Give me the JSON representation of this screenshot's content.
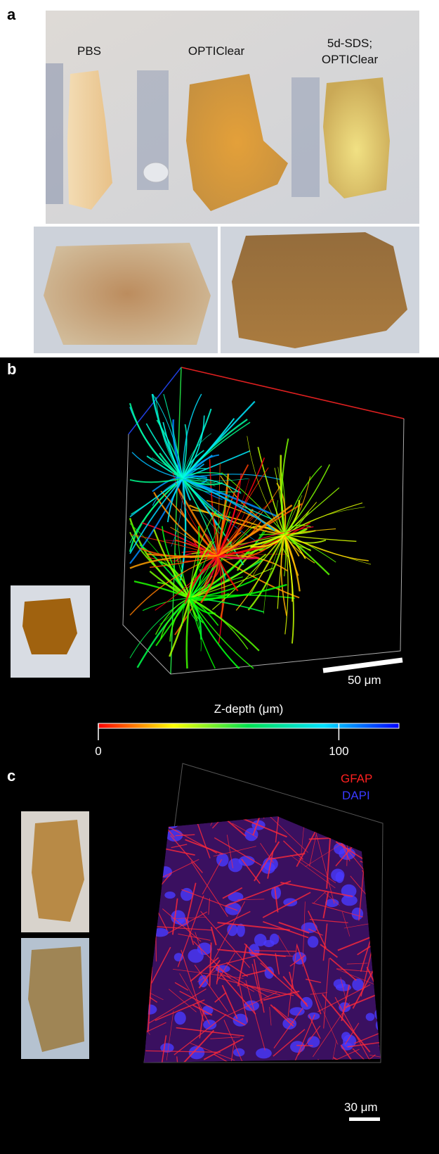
{
  "panel_a": {
    "label": "a",
    "samples": [
      "PBS",
      "OPTIClear",
      "5d-SDS; OPTIClear"
    ]
  },
  "panel_b": {
    "label": "b",
    "scale_bar": "50 μm",
    "colorbar": {
      "title": "Z-depth (μm)",
      "lim": [
        0,
        125
      ],
      "ticks": [
        0,
        100
      ]
    }
  },
  "panel_c": {
    "label": "c",
    "channels": [
      {
        "name": "GFAP",
        "color": "#ff2020"
      },
      {
        "name": "DAPI",
        "color": "#3a3aff"
      }
    ],
    "scale_bar": "30 μm"
  }
}
